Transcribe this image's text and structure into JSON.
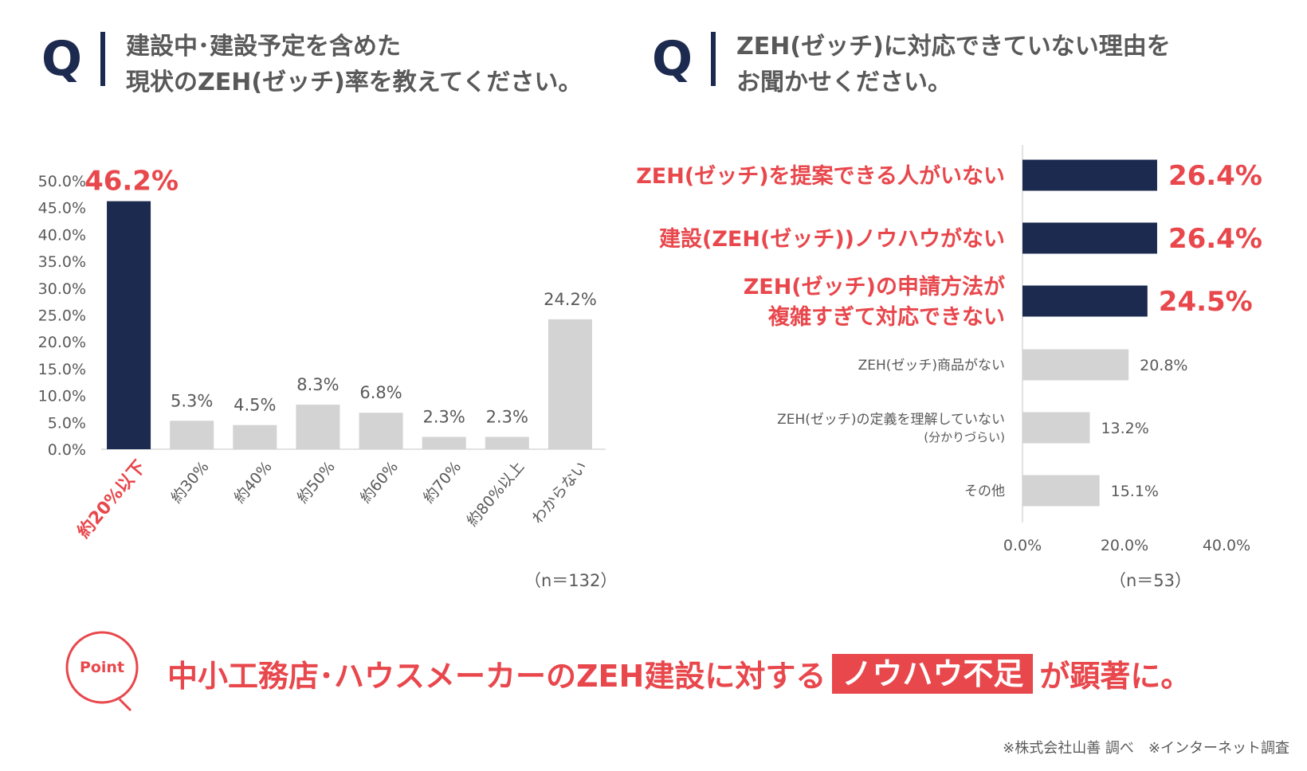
{
  "left_question": {
    "q": "Q",
    "text": "建設中･建設予定を含めた\n現状のZEH(ゼッチ)率を教えてください。"
  },
  "right_question": {
    "q": "Q",
    "text": "ZEH(ゼッチ)に対応できていない理由を\nお聞かせください。"
  },
  "colors": {
    "navy": "#1b2a4e",
    "gray_bar": "#d3d3d3",
    "accent_red": "#e8474c",
    "text": "#595959"
  },
  "chart_data": [
    {
      "type": "bar",
      "categories": [
        "約20%以下",
        "約30%",
        "約40%",
        "約50%",
        "約60%",
        "約70%",
        "約80%以上",
        "わからない"
      ],
      "values": [
        46.2,
        5.3,
        4.5,
        8.3,
        6.8,
        2.3,
        2.3,
        24.2
      ],
      "data_labels": [
        "46.2%",
        "5.3%",
        "4.5%",
        "8.3%",
        "6.8%",
        "2.3%",
        "2.3%",
        "24.2%"
      ],
      "highlight_index": 0,
      "yticks": [
        "0.0%",
        "5.0%",
        "10.0%",
        "15.0%",
        "20.0%",
        "25.0%",
        "30.0%",
        "35.0%",
        "40.0%",
        "45.0%",
        "50.0%"
      ],
      "ylim": [
        0,
        50
      ],
      "grid": false,
      "sample": "（n＝132）"
    },
    {
      "type": "bar",
      "orientation": "horizontal",
      "categories": [
        [
          "ZEH(ゼッチ)を提案できる人がいない"
        ],
        [
          "建設(ZEH(ゼッチ))ノウハウがない"
        ],
        [
          "ZEH(ゼッチ)の申請方法が",
          "複雑すぎて対応できない"
        ],
        [
          "ZEH(ゼッチ)商品がない"
        ],
        [
          "ZEH(ゼッチ)の定義を理解していない",
          "(分かりづらい)"
        ],
        [
          "その他"
        ]
      ],
      "values": [
        26.4,
        26.4,
        24.5,
        20.8,
        13.2,
        15.1
      ],
      "data_labels": [
        "26.4%",
        "26.4%",
        "24.5%",
        "20.8%",
        "13.2%",
        "15.1%"
      ],
      "highlight_count": 3,
      "xticks": [
        "0.0%",
        "20.0%",
        "40.0%"
      ],
      "xlim": [
        0,
        40
      ],
      "grid": false,
      "sample": "（n＝53）"
    }
  ],
  "point": {
    "badge": "Point",
    "before": "中小工務店･ハウスメーカーのZEH建設に対する",
    "highlight": "ノウハウ不足",
    "after": "が顕著に。"
  },
  "source": "※株式会社山善 調べ　※インターネット調査"
}
